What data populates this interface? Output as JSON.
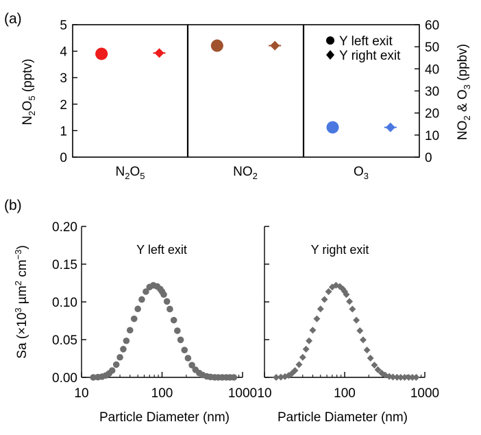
{
  "chart_data": [
    {
      "panel": "(a)",
      "type": "scatter",
      "categories": [
        "N2O5",
        "NO2",
        "O3"
      ],
      "left_axis": {
        "label": "N2O5 (pptv)",
        "ylim": [
          0,
          5
        ],
        "ticks": [
          "0",
          "1",
          "2",
          "3",
          "4",
          "5"
        ]
      },
      "right_axis": {
        "label": "NO2 & O3 (ppbv)",
        "ylim": [
          0,
          60
        ],
        "ticks": [
          "0",
          "10",
          "20",
          "30",
          "40",
          "50",
          "60"
        ]
      },
      "legend": {
        "placement": "top-right",
        "entries": [
          "Y left exit",
          "Y right exit"
        ]
      },
      "colors": {
        "N2O5": "#ee1c1c",
        "NO2": "#a0522d",
        "O3": "#4a78e0"
      },
      "series": [
        {
          "name": "Y left exit",
          "marker": "circle",
          "values": [
            3.9,
            50.5,
            13.5
          ],
          "axis": [
            "left",
            "right",
            "right"
          ]
        },
        {
          "name": "Y right exit",
          "marker": "diamond",
          "values": [
            3.93,
            50.5,
            13.5
          ],
          "axis": [
            "left",
            "right",
            "right"
          ]
        }
      ]
    },
    {
      "panel": "(b)",
      "type": "scatter",
      "ylabel": "Sa (×10³ µm² cm⁻³)",
      "ylim": [
        0,
        0.2
      ],
      "y_ticks": [
        "0.00",
        "0.05",
        "0.10",
        "0.15",
        "0.20"
      ],
      "marker_color": "#6e6e6e",
      "subplots": [
        {
          "label": "Y left exit",
          "marker": "circle",
          "xlabel": "Particle Diameter (nm)",
          "x_scale": "log",
          "xlim": [
            10,
            1000
          ],
          "x_ticks": [
            "10",
            "100",
            "1000"
          ],
          "x": [
            14,
            16,
            18,
            20,
            22,
            24,
            27,
            30,
            33,
            36,
            40,
            45,
            50,
            56,
            63,
            70,
            78,
            87,
            95,
            100,
            105,
            115,
            125,
            140,
            155,
            170,
            190,
            210,
            235,
            260,
            290,
            320,
            360,
            400,
            450,
            500,
            560,
            630,
            700,
            780
          ],
          "values": [
            0.0,
            0.0003,
            0.001,
            0.0025,
            0.0052,
            0.0091,
            0.0169,
            0.0266,
            0.0374,
            0.0484,
            0.0625,
            0.0776,
            0.0907,
            0.1032,
            0.1136,
            0.1197,
            0.122,
            0.1205,
            0.117,
            0.1137,
            0.1098,
            0.1006,
            0.0905,
            0.0758,
            0.0618,
            0.0497,
            0.0362,
            0.0255,
            0.0162,
            0.0101,
            0.0057,
            0.0031,
            0.0013,
            0.0005,
            0.0001,
            0.0,
            0.0,
            0.0,
            0.0,
            0.0
          ]
        },
        {
          "label": "Y right exit",
          "marker": "diamond",
          "xlabel": "Particle Diameter (nm)",
          "x_scale": "log",
          "xlim": [
            10,
            1000
          ],
          "x_ticks": [
            "10",
            "100",
            "1000"
          ],
          "x": [
            14,
            16,
            18,
            20,
            22,
            24,
            27,
            30,
            33,
            36,
            40,
            45,
            50,
            56,
            63,
            70,
            78,
            87,
            95,
            100,
            105,
            115,
            125,
            140,
            155,
            170,
            190,
            210,
            235,
            260,
            290,
            320,
            360,
            400,
            450,
            500,
            560,
            630,
            700,
            780
          ],
          "values": [
            0.0,
            0.0003,
            0.001,
            0.0025,
            0.0052,
            0.0091,
            0.0169,
            0.0266,
            0.0374,
            0.0484,
            0.0625,
            0.0776,
            0.0907,
            0.1032,
            0.1136,
            0.1197,
            0.122,
            0.1205,
            0.117,
            0.1137,
            0.1098,
            0.1006,
            0.0905,
            0.0758,
            0.0618,
            0.0497,
            0.0362,
            0.0255,
            0.0162,
            0.0101,
            0.0057,
            0.0031,
            0.0013,
            0.0005,
            0.0001,
            0.0,
            0.0,
            0.0,
            0.0,
            0.0
          ]
        }
      ]
    }
  ]
}
